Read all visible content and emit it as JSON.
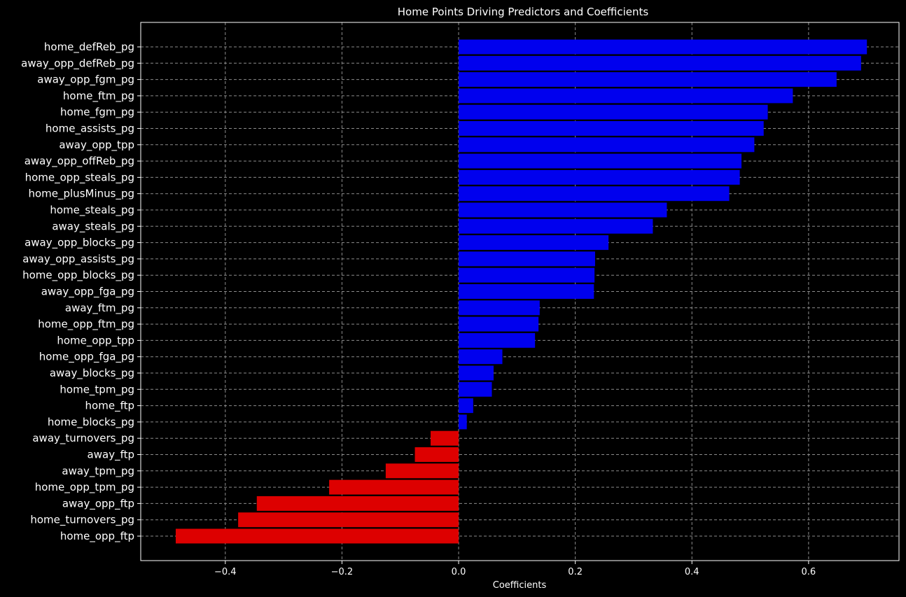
{
  "chart_data": {
    "type": "bar",
    "orientation": "horizontal",
    "title": "Home Points Driving Predictors and Coefficients",
    "xlabel": "Coefficients",
    "ylabel": "",
    "xlim": [
      -0.545,
      0.755
    ],
    "xticks": [
      -0.4,
      -0.2,
      0.0,
      0.2,
      0.4,
      0.6
    ],
    "xtick_labels": [
      "−0.4",
      "−0.2",
      "0.0",
      "0.2",
      "0.4",
      "0.6"
    ],
    "grid": true,
    "legend": "none",
    "colors": {
      "positive": "#0000ee",
      "negative": "#dd0000",
      "background": "#000000",
      "grid": "#8c8c8c",
      "text": "#ffffff"
    },
    "categories": [
      "home_defReb_pg",
      "away_opp_defReb_pg",
      "away_opp_fgm_pg",
      "home_ftm_pg",
      "home_fgm_pg",
      "home_assists_pg",
      "away_opp_tpp",
      "away_opp_offReb_pg",
      "home_opp_steals_pg",
      "home_plusMinus_pg",
      "home_steals_pg",
      "away_steals_pg",
      "away_opp_blocks_pg",
      "away_opp_assists_pg",
      "home_opp_blocks_pg",
      "away_opp_fga_pg",
      "away_ftm_pg",
      "home_opp_ftm_pg",
      "home_opp_tpp",
      "home_opp_fga_pg",
      "away_blocks_pg",
      "home_tpm_pg",
      "home_ftp",
      "home_blocks_pg",
      "away_turnovers_pg",
      "away_ftp",
      "away_tpm_pg",
      "home_opp_tpm_pg",
      "away_opp_ftp",
      "home_turnovers_pg",
      "home_opp_ftp"
    ],
    "values": [
      0.7,
      0.69,
      0.648,
      0.573,
      0.53,
      0.523,
      0.507,
      0.485,
      0.482,
      0.464,
      0.357,
      0.333,
      0.257,
      0.234,
      0.233,
      0.232,
      0.139,
      0.137,
      0.131,
      0.075,
      0.06,
      0.057,
      0.025,
      0.014,
      -0.048,
      -0.075,
      -0.125,
      -0.222,
      -0.346,
      -0.378,
      -0.485
    ]
  }
}
